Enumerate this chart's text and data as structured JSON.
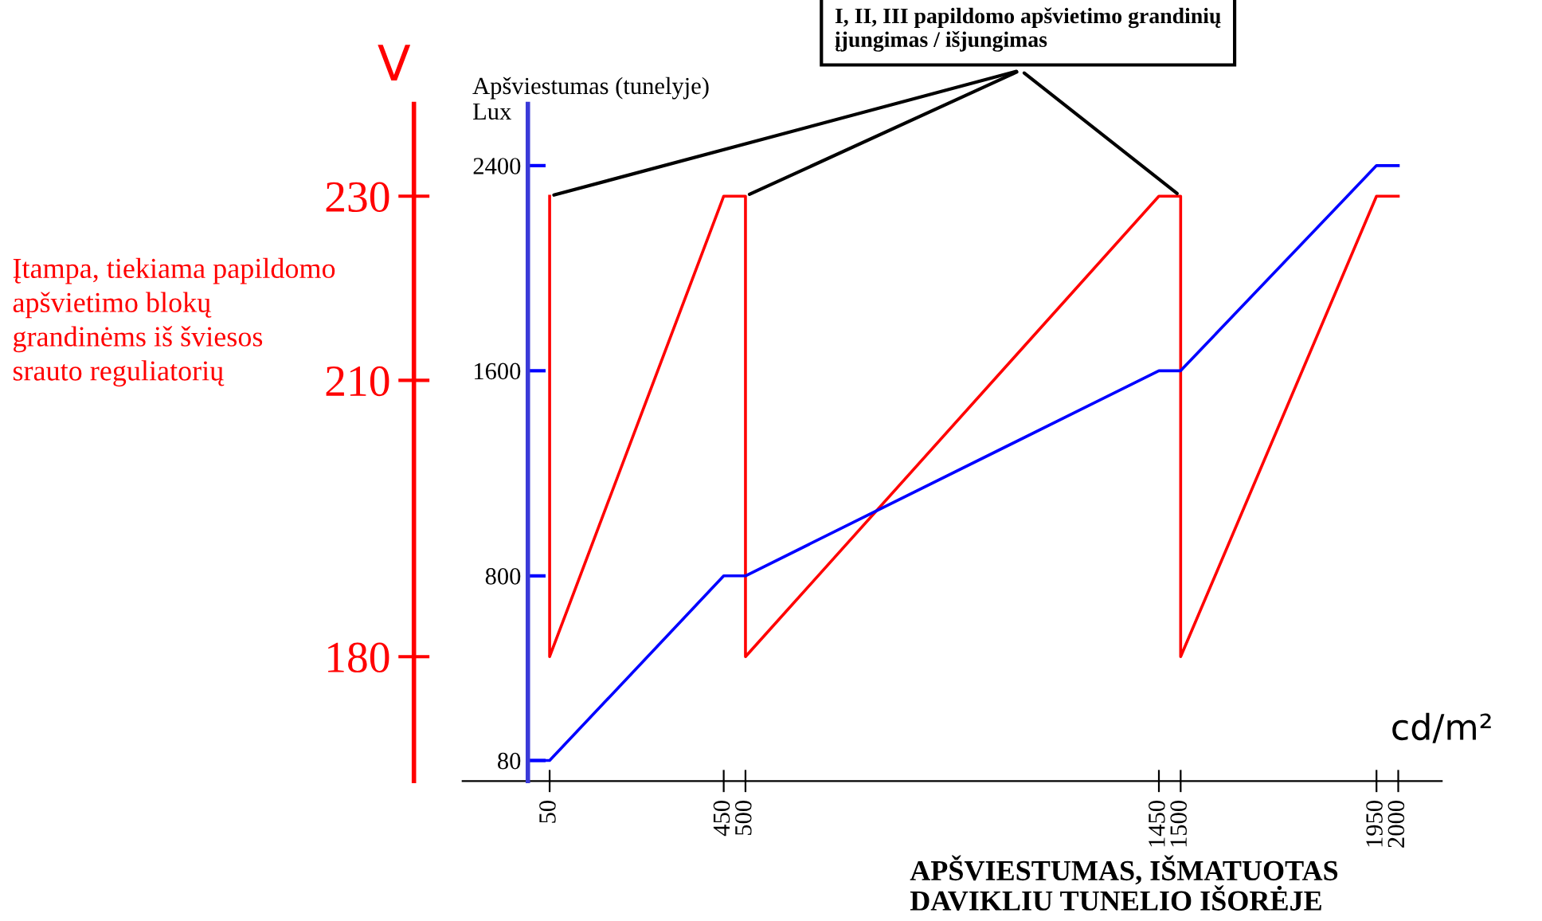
{
  "chart_data": {
    "type": "line",
    "ylabel": "V",
    "y2label": "Apšviestumas (tunelyje)\nLux",
    "xlabel": "cd/m²",
    "xlim": [
      -150,
      2100
    ],
    "xticks": [
      50,
      450,
      500,
      1450,
      1500,
      1950,
      2000
    ],
    "ylim": [
      166.5,
      240
    ],
    "yticks": [
      180,
      210,
      230
    ],
    "y2lim": [
      0,
      2640
    ],
    "y2ticks": [
      80,
      800,
      1600,
      2400
    ],
    "series": [
      {
        "color": "#ff0000",
        "x": [
          50,
          50,
          450,
          500,
          500,
          1450,
          1500,
          1500,
          1950,
          2000
        ],
        "values": [
          230,
          180,
          230,
          230,
          180,
          230,
          230,
          180,
          230,
          230
        ]
      },
      {
        "color": "#0000ff",
        "axis": "y2",
        "x": [
          0,
          50,
          450,
          500,
          1450,
          1500,
          1950,
          2000
        ],
        "values": [
          80,
          80,
          800,
          800,
          1600,
          1600,
          2400,
          2400
        ]
      }
    ],
    "annotations": [
      {
        "text": "I, II, III papildomo apšvietimo grandinių\nįjungimas / išjungimas",
        "x": 50,
        "y": 230
      },
      "Įtampa, tiekiama papildomo\napšvietimo blokų\ngrandinėms iš šviesos\nsrauto reguliatorių",
      "APŠVIESTUMAS, IŠMATUOTAS\nDAVIKLIU TUNELIO IŠORĖJE"
    ]
  }
}
